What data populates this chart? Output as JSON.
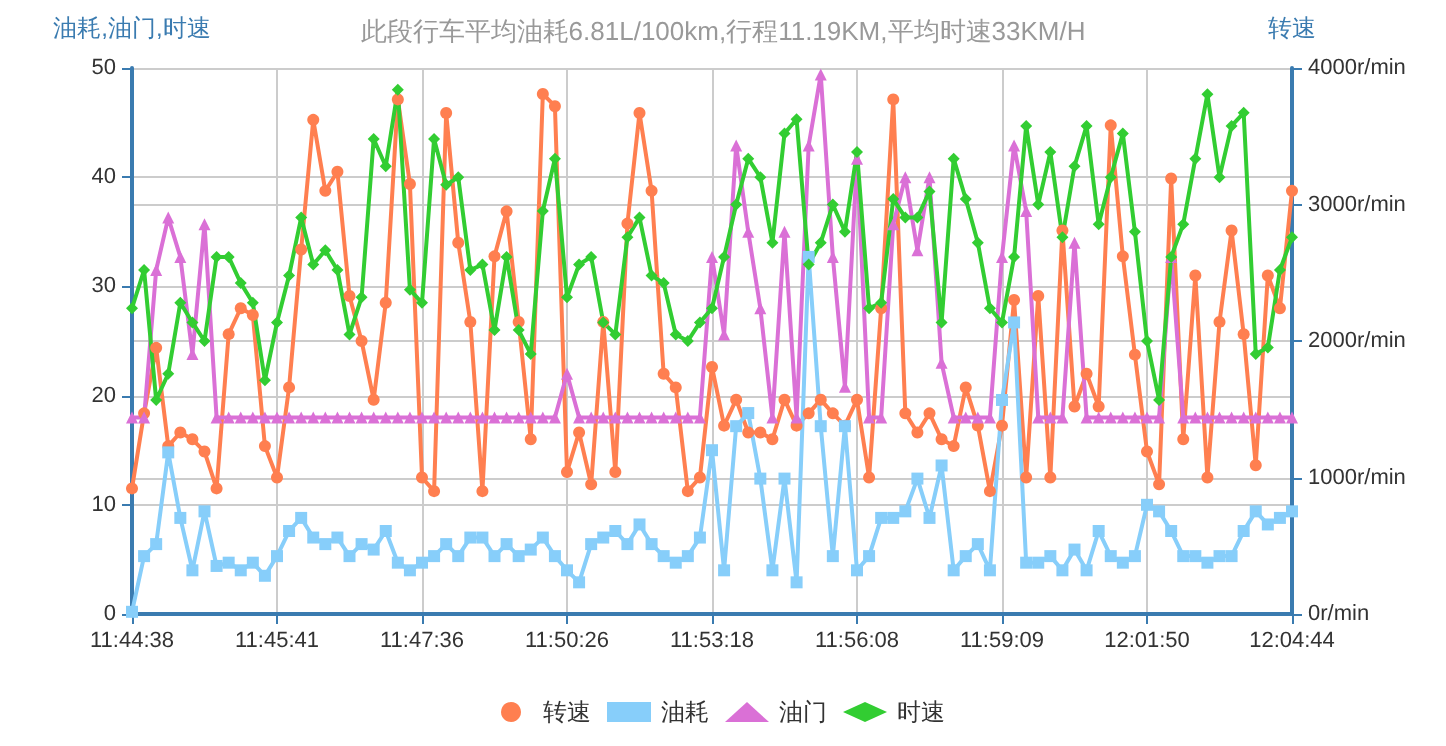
{
  "chart_data": {
    "type": "line",
    "title": "此段行车平均油耗6.81L/100km,行程11.19KM,平均时速33KM/H",
    "ylabel": "油耗,油门,时速",
    "y2label": "转速",
    "categories": [
      "11:44:38",
      null,
      null,
      null,
      null,
      null,
      null,
      null,
      null,
      null,
      null,
      null,
      "11:45:41",
      null,
      null,
      null,
      null,
      null,
      null,
      null,
      null,
      null,
      null,
      null,
      "11:47:36",
      null,
      null,
      null,
      null,
      null,
      null,
      null,
      null,
      null,
      null,
      null,
      "11:50:26",
      null,
      null,
      null,
      null,
      null,
      null,
      null,
      null,
      null,
      null,
      null,
      "11:53:18",
      null,
      null,
      null,
      null,
      null,
      null,
      null,
      null,
      null,
      null,
      null,
      "11:56:08",
      null,
      null,
      null,
      null,
      null,
      null,
      null,
      null,
      null,
      null,
      null,
      "11:59:09",
      null,
      null,
      null,
      null,
      null,
      null,
      null,
      null,
      null,
      null,
      null,
      "12:01:50",
      null,
      null,
      null,
      null,
      null,
      null,
      null,
      null,
      null,
      null,
      null,
      "12:04:44"
    ],
    "series": [
      {
        "name": "转速",
        "color": "#ff7f50",
        "axis": "y2",
        "marker": "circle",
        "values": [
          920,
          1470,
          1950,
          1230,
          1330,
          1280,
          1190,
          920,
          2050,
          2240,
          2190,
          1230,
          1000,
          1660,
          2670,
          3620,
          3100,
          3240,
          2330,
          2000,
          1570,
          2280,
          3770,
          3150,
          1000,
          900,
          3670,
          2720,
          2140,
          900,
          2620,
          2950,
          2140,
          1280,
          3810,
          3720,
          1040,
          1330,
          950,
          2140,
          1040,
          2860,
          3670,
          3100,
          1760,
          1660,
          900,
          1000,
          1810,
          1380,
          1570,
          1330,
          1330,
          1280,
          1570,
          1380,
          1470,
          1570,
          1470,
          1380,
          1570,
          1000,
          2240,
          3770,
          1470,
          1330,
          1470,
          1280,
          1230,
          1660,
          1380,
          900,
          1380,
          2300,
          1000,
          2330,
          1000,
          2810,
          1520,
          1760,
          1520,
          3580,
          2620,
          1900,
          1190,
          950,
          3190,
          1280,
          2480,
          1000,
          2140,
          2810,
          2050,
          1090,
          2480,
          2240,
          3100
        ]
      },
      {
        "name": "油耗",
        "color": "#87cefa",
        "marker": "square",
        "values": [
          0.2,
          5.3,
          6.4,
          14.8,
          8.8,
          4,
          9.4,
          4.4,
          4.7,
          4,
          4.7,
          3.5,
          5.3,
          7.6,
          8.8,
          7,
          6.4,
          7,
          5.3,
          6.4,
          5.9,
          7.6,
          4.7,
          4,
          4.7,
          5.3,
          6.4,
          5.3,
          7,
          7,
          5.3,
          6.4,
          5.3,
          5.9,
          7,
          5.3,
          4,
          2.9,
          6.4,
          7,
          7.6,
          6.4,
          8.2,
          6.4,
          5.3,
          4.7,
          5.3,
          7,
          15,
          4,
          17.2,
          18.4,
          12.4,
          4,
          12.4,
          2.9,
          32.7,
          17.2,
          5.3,
          17.2,
          4,
          5.3,
          8.8,
          8.8,
          9.4,
          12.4,
          8.8,
          13.6,
          4,
          5.3,
          6.4,
          4,
          19.6,
          26.7,
          4.7,
          4.7,
          5.3,
          4,
          5.9,
          4,
          7.6,
          5.3,
          4.7,
          5.3,
          10,
          9.4,
          7.6,
          5.3,
          5.3,
          4.7,
          5.3,
          5.3,
          7.6,
          9.4,
          8.2,
          8.8,
          9.4
        ]
      },
      {
        "name": "油门",
        "color": "#da70d6",
        "marker": "triangle",
        "values": [
          18,
          18,
          31.5,
          36.3,
          32.7,
          23.8,
          35.7,
          18,
          18,
          18,
          18,
          18,
          18,
          18,
          18,
          18,
          18,
          18,
          18,
          18,
          18,
          18,
          18,
          18,
          18,
          18,
          18,
          18,
          18,
          18,
          18,
          18,
          18,
          18,
          18,
          18,
          22,
          18,
          18,
          18,
          18,
          18,
          18,
          18,
          18,
          18,
          18,
          18,
          32.7,
          25.6,
          42.9,
          35,
          28,
          18,
          35,
          18,
          42.9,
          49.4,
          32.7,
          20.8,
          41.7,
          18,
          18,
          35.7,
          40,
          33.3,
          40,
          23,
          18,
          18,
          18,
          18,
          32.7,
          42.9,
          36.9,
          18,
          18,
          18,
          34,
          18,
          18,
          18,
          18,
          18,
          18,
          18,
          32.7,
          18,
          18,
          18,
          18,
          18,
          18,
          18,
          18,
          18,
          18
        ]
      },
      {
        "name": "时速",
        "color": "#32cd32",
        "marker": "diamond",
        "values": [
          28,
          31.5,
          19.6,
          22,
          28.5,
          26.7,
          25,
          32.7,
          32.7,
          30.3,
          28.5,
          21.4,
          26.7,
          31,
          36.3,
          32,
          33.3,
          31.5,
          25.6,
          29,
          43.5,
          41,
          48,
          29.7,
          28.5,
          43.5,
          39.3,
          40,
          31.5,
          32,
          26,
          32.7,
          26,
          23.8,
          36.9,
          41.7,
          29,
          32,
          32.7,
          26.7,
          25.6,
          34.5,
          36.3,
          31,
          30.3,
          25.6,
          25,
          26.7,
          28,
          32.7,
          37.5,
          41.7,
          40,
          34,
          44,
          45.3,
          32,
          34,
          37.5,
          35,
          42.3,
          28,
          28.5,
          38,
          36.3,
          36.3,
          38.7,
          26.7,
          41.7,
          38,
          34,
          28,
          26.7,
          32.7,
          44.7,
          37.5,
          42.3,
          34.5,
          41,
          44.7,
          35.7,
          40,
          44,
          35,
          25,
          19.6,
          32.7,
          35.7,
          41.7,
          47.6,
          40,
          44.7,
          45.9,
          23.8,
          24.4,
          31.5,
          34.5
        ]
      }
    ],
    "ylim": [
      0,
      50
    ],
    "yticks": [
      0,
      10,
      20,
      30,
      40,
      50
    ],
    "y2lim": [
      0,
      4000
    ],
    "y2ticks": [
      {
        "value": 0,
        "label": "0r/min"
      },
      {
        "value": 1000,
        "label": "1000r/min"
      },
      {
        "value": 2000,
        "label": "2000r/min"
      },
      {
        "value": 3000,
        "label": "3000r/min"
      },
      {
        "value": 4000,
        "label": "4000r/min"
      }
    ],
    "grid": true,
    "legend": "bottom",
    "line_style": "solid"
  }
}
